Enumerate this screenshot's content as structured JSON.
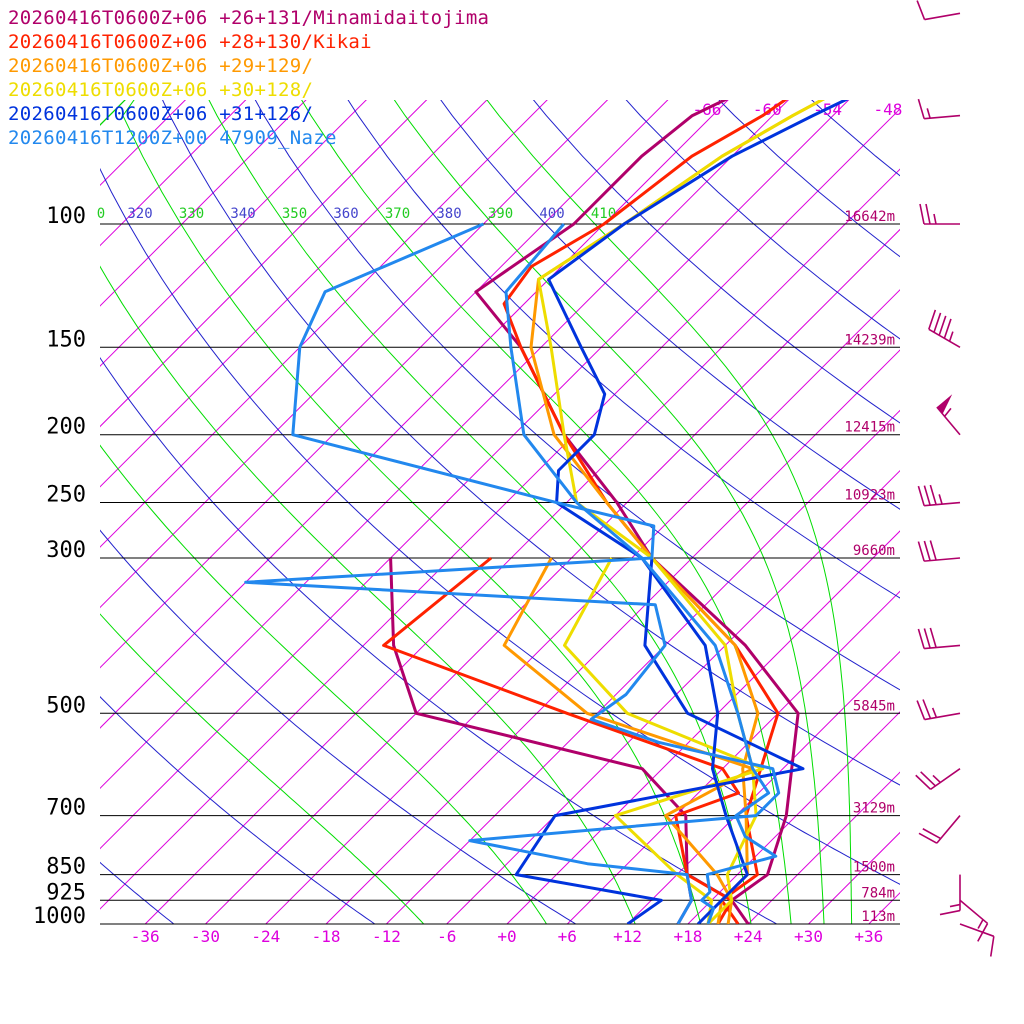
{
  "legend": [
    {
      "label": "20260416T0600Z+06 +26+131/Minamidaitojima",
      "color": "#b0006a"
    },
    {
      "label": "20260416T0600Z+06 +28+130/Kikai",
      "color": "#ff2200"
    },
    {
      "label": "20260416T0600Z+06 +29+129/",
      "color": "#ff9900"
    },
    {
      "label": "20260416T0600Z+06 +30+128/",
      "color": "#eedd00"
    },
    {
      "label": "20260416T0600Z+06 +31+126/",
      "color": "#0033dd"
    },
    {
      "label": "20260416T1200Z+00 47909_Naze",
      "color": "#2288ee"
    }
  ],
  "colors": {
    "isobar": "#000000",
    "isotherm": "#dd00dd",
    "dry_adiabat": "#2222cc",
    "moist_adiabat": "#00dd00",
    "height_label": "#b0006a",
    "wind_barb": "#b0006a",
    "temp_tick_label": "#dd00dd"
  },
  "chart_data": {
    "type": "skew-t",
    "pressure_levels": [
      {
        "label": "100",
        "p": 100,
        "height": "16642m"
      },
      {
        "label": "150",
        "p": 150,
        "height": "14239m"
      },
      {
        "label": "200",
        "p": 200,
        "height": "12415m"
      },
      {
        "label": "250",
        "p": 250,
        "height": "10923m"
      },
      {
        "label": "300",
        "p": 300,
        "height": "9660m"
      },
      {
        "label": "500",
        "p": 500,
        "height": "5845m"
      },
      {
        "label": "700",
        "p": 700,
        "height": "3129m"
      },
      {
        "label": "850",
        "p": 850,
        "height": "1500m"
      },
      {
        "label": "925",
        "p": 925,
        "height": "784m"
      },
      {
        "label": "1000",
        "p": 1000,
        "height": "113m"
      }
    ],
    "x_ticks": [
      {
        "label": "-36",
        "t": -36
      },
      {
        "label": "-30",
        "t": -30
      },
      {
        "label": "-24",
        "t": -24
      },
      {
        "label": "-18",
        "t": -18
      },
      {
        "label": "-12",
        "t": -12
      },
      {
        "label": "-6",
        "t": -6
      },
      {
        "label": "+0",
        "t": 0
      },
      {
        "label": "+6",
        "t": 6
      },
      {
        "label": "+12",
        "t": 12
      },
      {
        "label": "+18",
        "t": 18
      },
      {
        "label": "+24",
        "t": 24
      },
      {
        "label": "+30",
        "t": 30
      },
      {
        "label": "+36",
        "t": 36
      }
    ],
    "upper_temp_labels": [
      {
        "label": "-66",
        "t": -66
      },
      {
        "label": "-60",
        "t": -60
      },
      {
        "label": "-54",
        "t": -54
      },
      {
        "label": "-48",
        "t": -48
      }
    ],
    "theta_labels": [
      {
        "label": "0",
        "kind": "moist"
      },
      {
        "label": "320",
        "kind": "dry"
      },
      {
        "label": "330",
        "kind": "moist"
      },
      {
        "label": "340",
        "kind": "dry"
      },
      {
        "label": "350",
        "kind": "moist"
      },
      {
        "label": "360",
        "kind": "dry"
      },
      {
        "label": "370",
        "kind": "moist"
      },
      {
        "label": "380",
        "kind": "dry"
      },
      {
        "label": "390",
        "kind": "moist"
      },
      {
        "label": "400",
        "kind": "dry"
      },
      {
        "label": "410",
        "kind": "moist"
      }
    ],
    "soundings": [
      {
        "name": "20260416T0600Z+06 +26+131/Minamidaitojima",
        "color": "#b0006a",
        "temperature": [
          [
            1000,
            24
          ],
          [
            925,
            20
          ],
          [
            850,
            21
          ],
          [
            700,
            17
          ],
          [
            500,
            8
          ],
          [
            400,
            -4
          ],
          [
            300,
            -22
          ],
          [
            250,
            -31
          ],
          [
            200,
            -43
          ],
          [
            150,
            -56
          ],
          [
            125,
            -66
          ],
          [
            100,
            -63
          ],
          [
            80,
            -63
          ],
          [
            70,
            -62
          ],
          [
            60,
            -57
          ],
          [
            50,
            -52
          ]
        ],
        "dewpoint": [
          [
            1000,
            17
          ],
          [
            925,
            16
          ],
          [
            850,
            13
          ],
          [
            700,
            7
          ],
          [
            600,
            -2
          ],
          [
            500,
            -30
          ],
          [
            400,
            -39
          ],
          [
            300,
            -48
          ]
        ]
      },
      {
        "name": "20260416T0600Z+06 +28+130/Kikai",
        "color": "#ff2200",
        "temperature": [
          [
            1000,
            23
          ],
          [
            925,
            19
          ],
          [
            850,
            20
          ],
          [
            700,
            13
          ],
          [
            500,
            6
          ],
          [
            400,
            -5
          ],
          [
            300,
            -22
          ],
          [
            250,
            -32
          ],
          [
            200,
            -43
          ],
          [
            150,
            -56
          ],
          [
            130,
            -62
          ],
          [
            115,
            -63
          ],
          [
            100,
            -60
          ],
          [
            80,
            -58
          ],
          [
            70,
            -55
          ],
          [
            60,
            -53
          ],
          [
            50,
            -50
          ]
        ],
        "dewpoint": [
          [
            1000,
            21
          ],
          [
            925,
            20
          ],
          [
            850,
            13
          ],
          [
            700,
            6
          ],
          [
            650,
            10
          ],
          [
            600,
            6
          ],
          [
            500,
            -15
          ],
          [
            400,
            -40
          ],
          [
            300,
            -38
          ]
        ]
      },
      {
        "name": "20260416T0600Z+06 +29+129/",
        "color": "#ff9900",
        "temperature": [
          [
            1000,
            21
          ],
          [
            925,
            19
          ],
          [
            850,
            19
          ],
          [
            700,
            13
          ],
          [
            600,
            8
          ],
          [
            500,
            4
          ],
          [
            400,
            -5
          ],
          [
            300,
            -22
          ],
          [
            250,
            -32
          ],
          [
            200,
            -44
          ],
          [
            150,
            -55
          ],
          [
            120,
            -61
          ],
          [
            100,
            -58
          ],
          [
            80,
            -55
          ],
          [
            70,
            -52
          ],
          [
            60,
            -48
          ],
          [
            50,
            -45
          ]
        ],
        "dewpoint": [
          [
            1000,
            22
          ],
          [
            925,
            20
          ],
          [
            850,
            16
          ],
          [
            700,
            5
          ],
          [
            600,
            9
          ],
          [
            500,
            -13
          ],
          [
            400,
            -28
          ],
          [
            300,
            -32
          ]
        ]
      },
      {
        "name": "20260416T0600Z+06 +30+128/",
        "color": "#eedd00",
        "temperature": [
          [
            1000,
            20
          ],
          [
            925,
            20
          ],
          [
            850,
            17
          ],
          [
            700,
            14
          ],
          [
            600,
            9
          ],
          [
            500,
            2
          ],
          [
            400,
            -6
          ],
          [
            300,
            -22
          ],
          [
            250,
            -35
          ],
          [
            200,
            -43
          ],
          [
            150,
            -53
          ],
          [
            120,
            -61
          ],
          [
            100,
            -58
          ],
          [
            80,
            -55
          ],
          [
            70,
            -52
          ],
          [
            60,
            -48
          ],
          [
            50,
            -45
          ]
        ],
        "dewpoint": [
          [
            1000,
            20
          ],
          [
            925,
            18
          ],
          [
            850,
            12
          ],
          [
            700,
            0
          ],
          [
            600,
            10
          ],
          [
            500,
            -9
          ],
          [
            400,
            -22
          ],
          [
            300,
            -26
          ]
        ]
      },
      {
        "name": "20260416T0600Z+06 +31+126/",
        "color": "#0033dd",
        "temperature": [
          [
            1000,
            19
          ],
          [
            925,
            19
          ],
          [
            850,
            19
          ],
          [
            700,
            11
          ],
          [
            600,
            5
          ],
          [
            500,
            0
          ],
          [
            400,
            -8
          ],
          [
            300,
            -23
          ],
          [
            250,
            -37
          ],
          [
            225,
            -40
          ],
          [
            200,
            -40
          ],
          [
            175,
            -43
          ],
          [
            150,
            -50
          ],
          [
            120,
            -60
          ],
          [
            100,
            -58
          ],
          [
            80,
            -54
          ],
          [
            70,
            -50
          ],
          [
            60,
            -45
          ],
          [
            50,
            -42
          ]
        ],
        "dewpoint": [
          [
            1000,
            12
          ],
          [
            925,
            13
          ],
          [
            850,
            -4
          ],
          [
            700,
            -6
          ],
          [
            600,
            14
          ],
          [
            500,
            -3
          ],
          [
            400,
            -14
          ],
          [
            300,
            -22
          ]
        ]
      },
      {
        "name": "20260416T1200Z+00 47909_Naze",
        "color": "#2288ee",
        "temperature": [
          [
            1000,
            20
          ],
          [
            950,
            19
          ],
          [
            925,
            17
          ],
          [
            900,
            17
          ],
          [
            850,
            15
          ],
          [
            800,
            20
          ],
          [
            750,
            15
          ],
          [
            700,
            12
          ],
          [
            650,
            13
          ],
          [
            600,
            9
          ],
          [
            500,
            2
          ],
          [
            400,
            -7
          ],
          [
            300,
            -23
          ],
          [
            250,
            -35
          ],
          [
            200,
            -47
          ],
          [
            150,
            -57
          ],
          [
            125,
            -63
          ],
          [
            100,
            -64
          ]
        ],
        "dewpoint": [
          [
            1000,
            17
          ],
          [
            925,
            16
          ],
          [
            850,
            13
          ],
          [
            820,
            2
          ],
          [
            760,
            -12
          ],
          [
            700,
            14
          ],
          [
            650,
            14
          ],
          [
            600,
            11
          ],
          [
            550,
            -3
          ],
          [
            510,
            -12
          ],
          [
            470,
            -11
          ],
          [
            400,
            -12
          ],
          [
            350,
            -17
          ],
          [
            325,
            -60
          ],
          [
            300,
            -22
          ],
          [
            270,
            -25
          ],
          [
            250,
            -37
          ],
          [
            200,
            -70
          ],
          [
            150,
            -78
          ],
          [
            125,
            -81
          ],
          [
            100,
            -72
          ]
        ]
      }
    ],
    "winds": [
      {
        "p": 50,
        "dir": 260,
        "spd": 10
      },
      {
        "p": 70,
        "dir": 265,
        "spd": 15
      },
      {
        "p": 100,
        "dir": 270,
        "spd": 25
      },
      {
        "p": 150,
        "dir": 300,
        "spd": 45
      },
      {
        "p": 200,
        "dir": 320,
        "spd": 55
      },
      {
        "p": 250,
        "dir": 265,
        "spd": 35
      },
      {
        "p": 300,
        "dir": 265,
        "spd": 30
      },
      {
        "p": 400,
        "dir": 265,
        "spd": 30
      },
      {
        "p": 500,
        "dir": 260,
        "spd": 25
      },
      {
        "p": 600,
        "dir": 235,
        "spd": 25
      },
      {
        "p": 700,
        "dir": 220,
        "spd": 20
      },
      {
        "p": 850,
        "dir": 180,
        "spd": 15
      },
      {
        "p": 925,
        "dir": 130,
        "spd": 15
      },
      {
        "p": 1000,
        "dir": 110,
        "spd": 10
      }
    ]
  }
}
